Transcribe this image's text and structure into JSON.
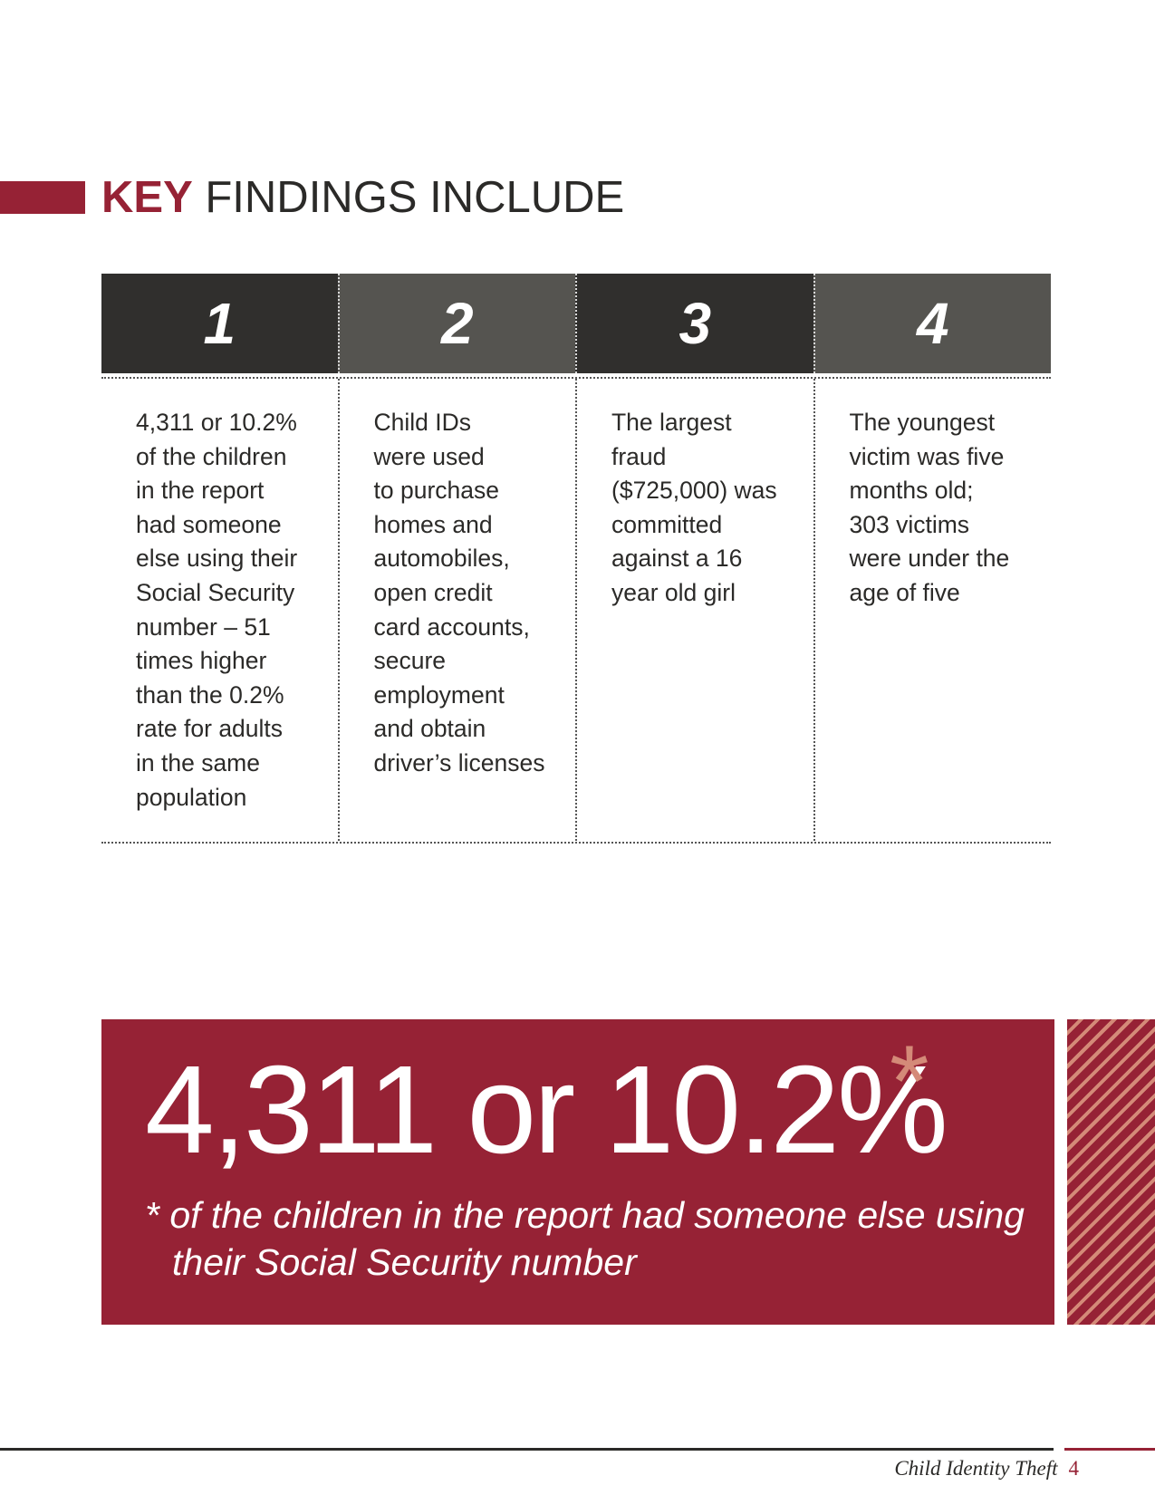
{
  "colors": {
    "accent": "#962235",
    "accent_light": "#d48a78",
    "header_dark": "#302f2d",
    "header_gray": "#555450",
    "text": "#2b2a28"
  },
  "heading": {
    "keyword": "KEY",
    "rest": " FINDINGS INCLUDE"
  },
  "findings": [
    {
      "number": "1",
      "text": "4,311 or 10.2%\nof the children\nin the report\nhad someone\nelse using their\nSocial Security\nnumber – 51\ntimes higher\nthan the 0.2%\nrate for adults\nin the same\npopulation"
    },
    {
      "number": "2",
      "text": "Child IDs\nwere used\nto purchase\nhomes and\nautomobiles,\nopen credit\ncard accounts,\nsecure\nemployment\nand obtain\ndriver’s licenses"
    },
    {
      "number": "3",
      "text": "The largest\nfraud\n($725,000) was\ncommitted\nagainst a 16\nyear old girl"
    },
    {
      "number": "4",
      "text": "The youngest\nvictim was five\nmonths old;\n303 victims\nwere under the\nage of five"
    }
  ],
  "callout": {
    "stat": "4,311 or 10.2%",
    "asterisk": "*",
    "note": "* of the children in the report had someone else using their Social Security number"
  },
  "footer": {
    "title": "Child Identity Theft",
    "page_number": "4"
  }
}
